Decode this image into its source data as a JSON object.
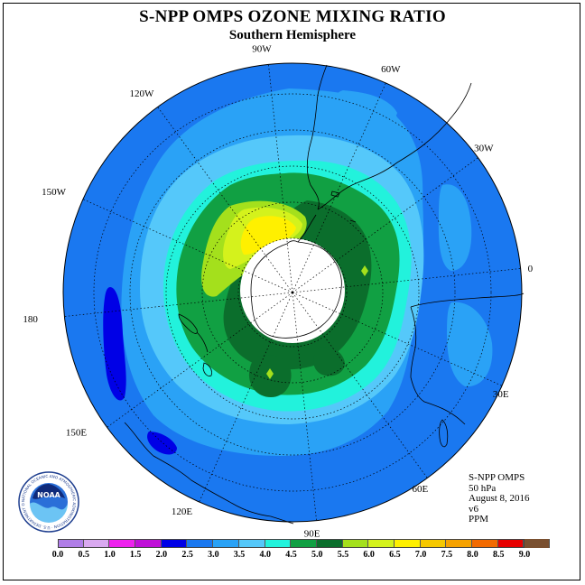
{
  "title": "S-NPP OMPS OZONE MIXING RATIO",
  "subtitle": "Southern Hemisphere",
  "longitude_labels": [
    "90W",
    "60W",
    "30W",
    "0",
    "30E",
    "60E",
    "90E",
    "120E",
    "150E",
    "180",
    "150W",
    "120W"
  ],
  "info": {
    "instrument": "S-NPP OMPS",
    "pressure": "50 hPa",
    "date": "August 8, 2016",
    "version": "v6",
    "units": "PPM"
  },
  "logo": {
    "text": "NOAA",
    "ring_text": "NATIONAL OCEANIC AND ATMOSPHERIC ADMINISTRATION · U.S. DEPARTMENT OF COMMERCE"
  },
  "colorbar": {
    "ticks": [
      "0.0",
      "0.5",
      "1.0",
      "1.5",
      "2.0",
      "2.5",
      "3.0",
      "3.5",
      "4.0",
      "4.5",
      "5.0",
      "5.5",
      "6.0",
      "6.5",
      "7.0",
      "7.5",
      "8.0",
      "8.5",
      "9.0"
    ],
    "colors": [
      "#b07ee8",
      "#d9a9f0",
      "#ee22ee",
      "#c010d8",
      "#0000e6",
      "#1a78f0",
      "#2aa2f6",
      "#55c8fa",
      "#22f2dc",
      "#11a043",
      "#0b6e2c",
      "#a4e01c",
      "#d4f21c",
      "#fff000",
      "#f6c800",
      "#f6a200",
      "#f26a00",
      "#e80000",
      "#7a5030"
    ]
  },
  "colors": {
    "background_blue": "#1a78f0",
    "light_blue": "#2aa2f6",
    "sky_blue": "#55c8fa",
    "cyan": "#22f2dc",
    "green": "#11a043",
    "dark_green": "#0b6e2c",
    "lime": "#a4e01c",
    "yellow_green": "#d4f21c",
    "yellow": "#fff000",
    "dark_blue": "#0000e6",
    "polar_night": "#ffffff"
  }
}
